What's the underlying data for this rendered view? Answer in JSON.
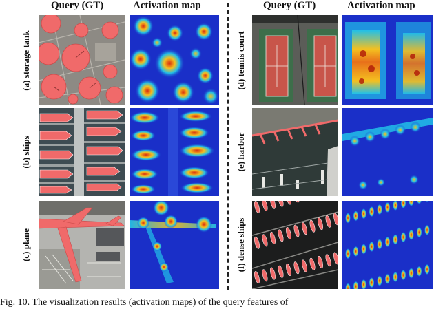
{
  "headers": {
    "left_query": "Query (GT)",
    "left_activation": "Activation map",
    "right_query": "Query (GT)",
    "right_activation": "Activation map"
  },
  "rows": {
    "a": "(a) storage tank",
    "b": "(b) ships",
    "c": "(c) plane",
    "d": "(d) tennis court",
    "e": "(e) harbor",
    "f": "(f) dense ships"
  },
  "caption": "Fig. 10.  The visualization results (activation maps) of the query features of",
  "colors": {
    "mask": "#f06a6a",
    "heat_low": "#1a2fc8",
    "heat_mid": "#22c0e8",
    "heat_high": "#d82a10"
  }
}
